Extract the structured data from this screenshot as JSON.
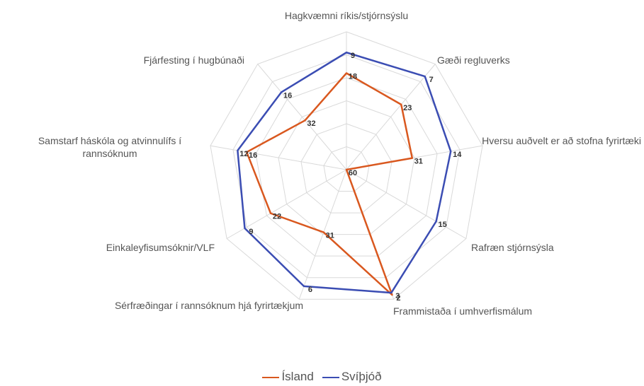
{
  "chart_data": {
    "type": "radar",
    "categories": [
      "Hagkvæmni ríkis/stjórnsýslu",
      "Gæði regluverks",
      "Hversu auðvelt er að stofna fyrirtæki",
      "Rafræn stjórnsýsla",
      "Frammistaða í umhverfismálum",
      "Sérfræðingar í rannsóknum hjá fyrirtækjum",
      "Einkaleyfisumsóknir/VLF",
      "Samstarf háskóla og atvinnulífs í rannsóknum",
      "Fjárfesting í hugbúnaði"
    ],
    "series": [
      {
        "name": "Ísland",
        "color": "#d9581f",
        "values": [
          18,
          23,
          31,
          60,
          2,
          31,
          22,
          16,
          32
        ]
      },
      {
        "name": "Svíþjóð",
        "color": "#3b4db3",
        "values": [
          9,
          7,
          14,
          15,
          3,
          6,
          9,
          12,
          16
        ]
      }
    ],
    "ylim": [
      0,
      60
    ],
    "yticks": [
      0,
      10,
      20,
      30,
      40,
      50,
      60
    ],
    "reversed": true,
    "grid": true,
    "legend": "bottom"
  }
}
